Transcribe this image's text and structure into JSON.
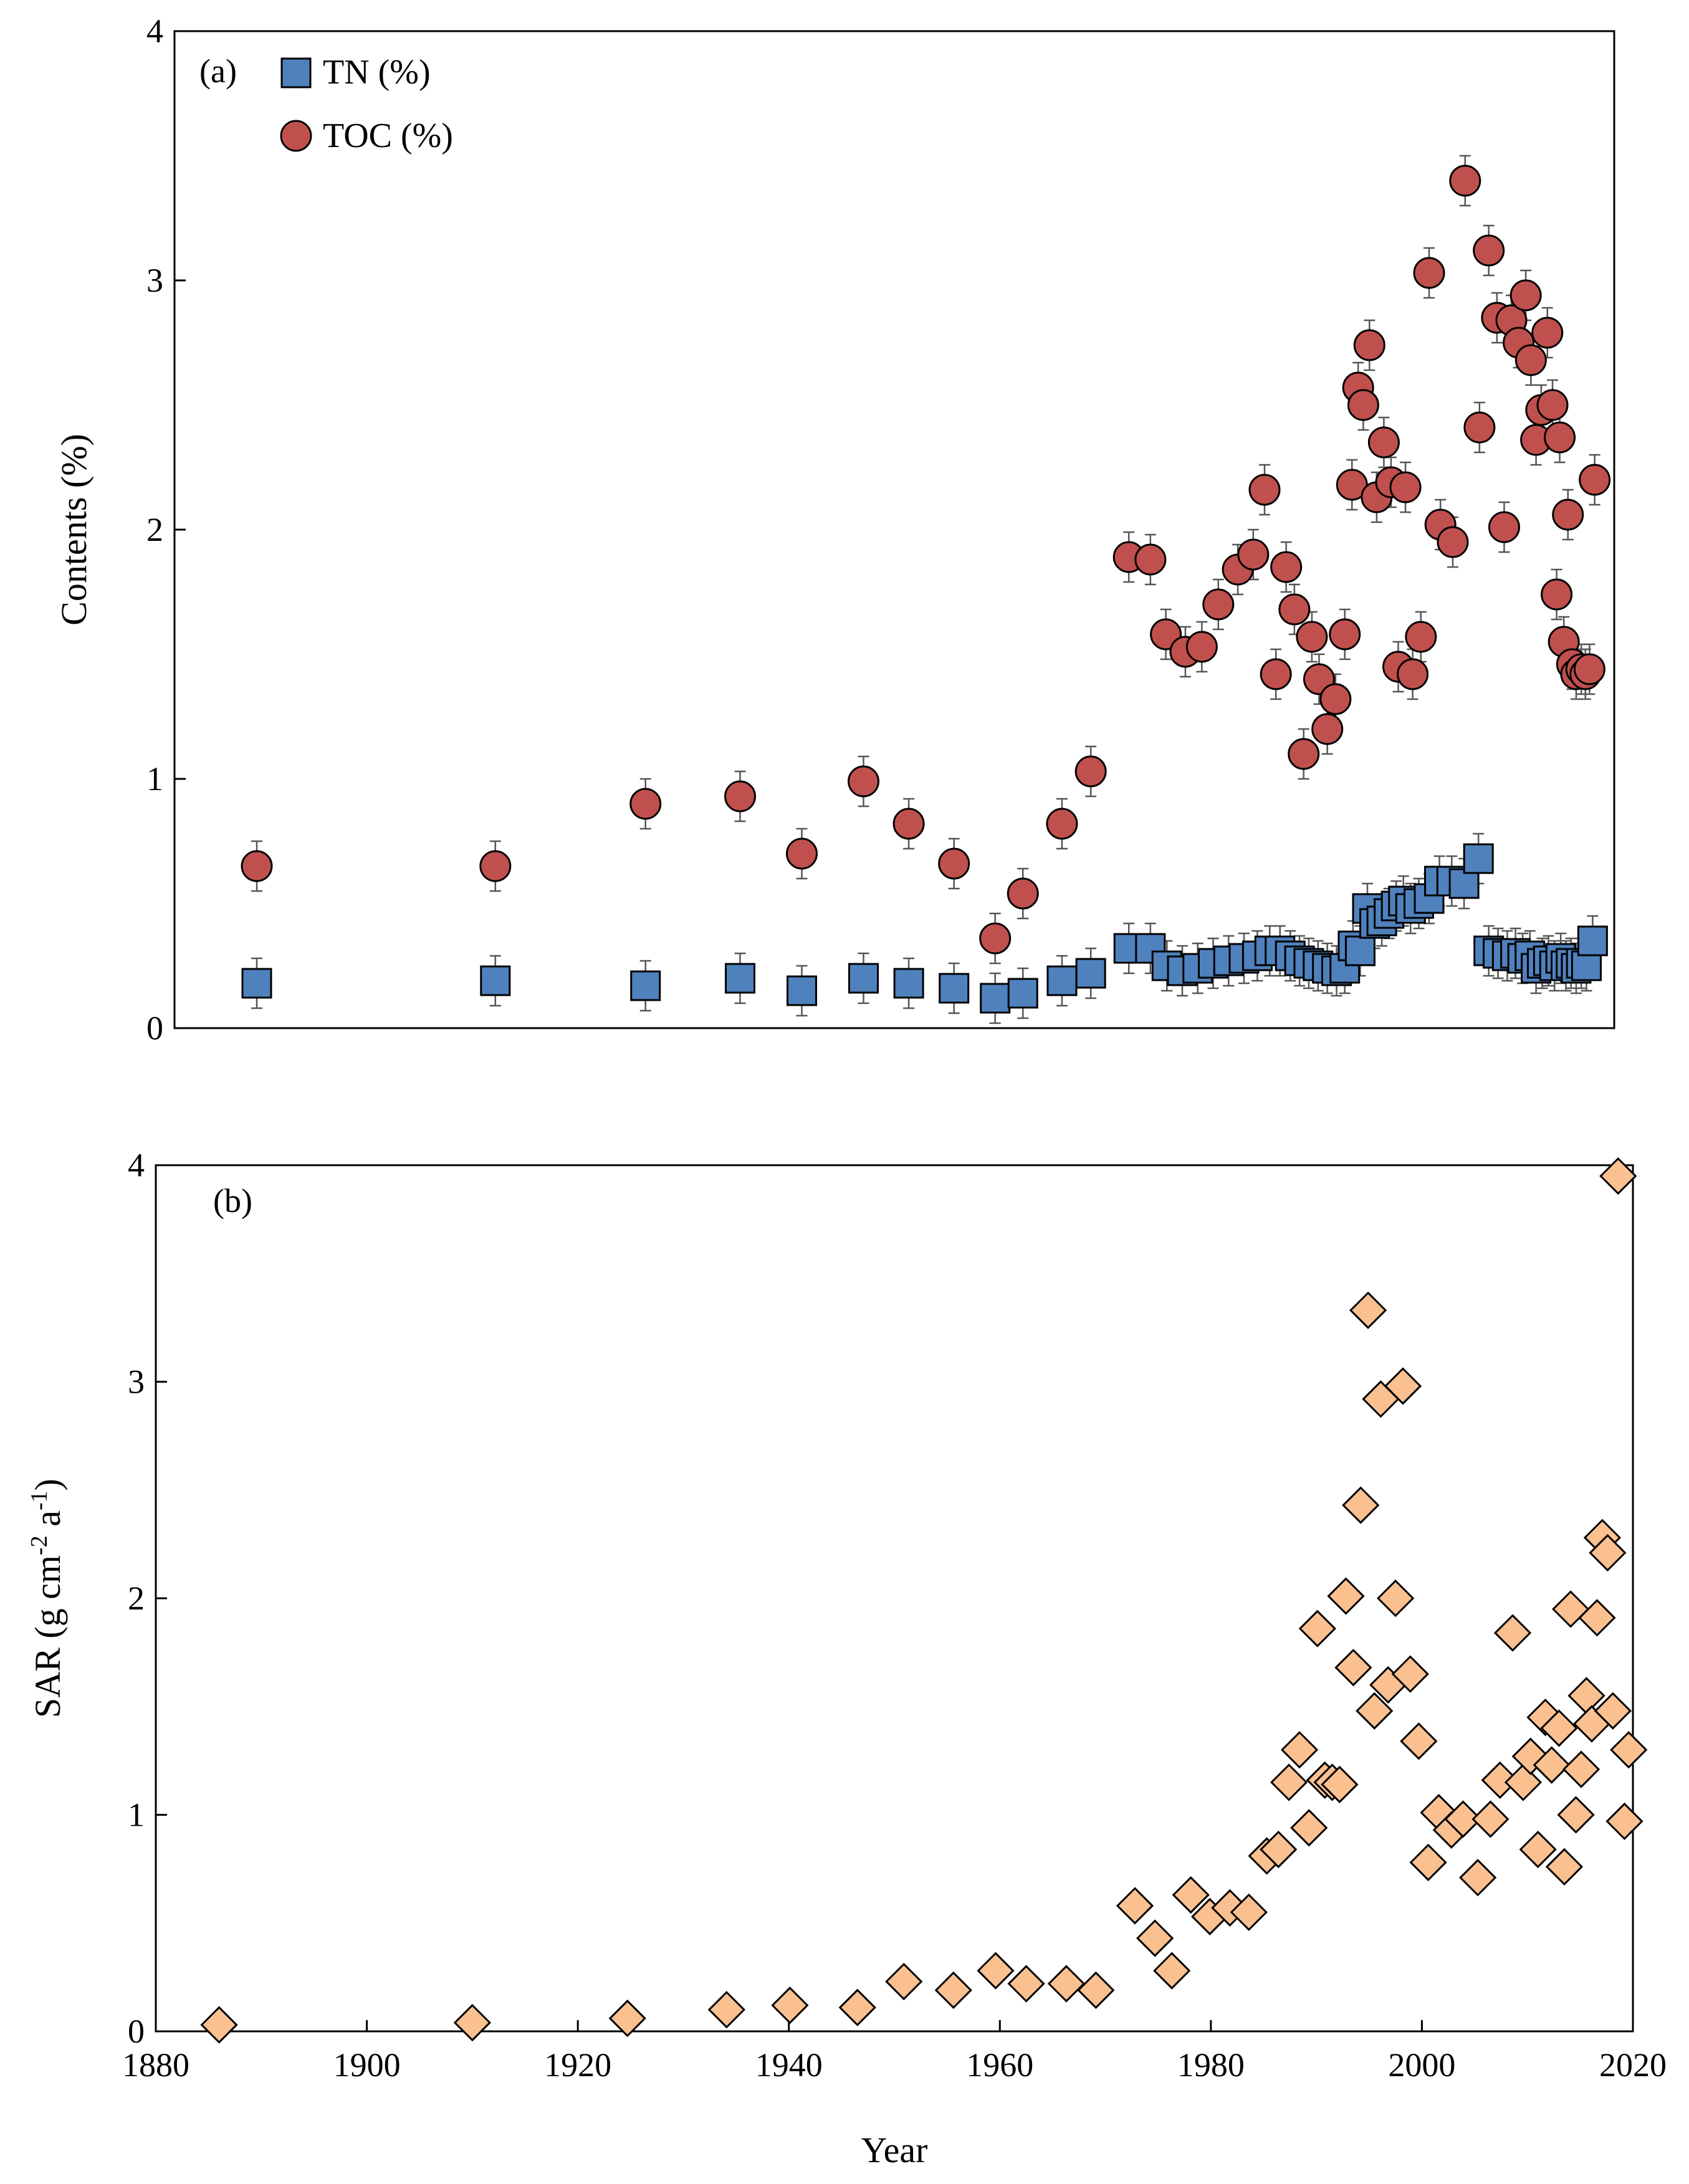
{
  "chart_data": [
    {
      "type": "scatter",
      "panel_label": "(a)",
      "ylabel": "Contents (%)",
      "xlabel": "",
      "xlim": [
        1880,
        2020
      ],
      "ylim": [
        0,
        4
      ],
      "yticks": [
        0,
        1,
        2,
        3,
        4
      ],
      "grid": false,
      "legend_position": "top-left",
      "error_bar": 0.1,
      "series": [
        {
          "name": "TN (%)",
          "marker": "square",
          "color": "#4f81bd",
          "x": [
            1888,
            1911.2,
            1925.8,
            1935,
            1941,
            1947,
            1951.4,
            1955.8,
            1959.8,
            1962.5,
            1966.3,
            1969.1,
            1972.8,
            1974.9,
            1976.5,
            1978,
            1979.5,
            1981,
            1982.5,
            1984,
            1985.3,
            1986.5,
            1987.5,
            1988.5,
            1989.4,
            1990.3,
            1991.2,
            1992.1,
            1993,
            1993.8,
            1994.6,
            1995.3,
            1996,
            1996.7,
            1997.4,
            1998.1,
            1998.8,
            1999.5,
            2000.2,
            2001,
            2002,
            2003,
            2004.2,
            2005.4,
            2006.8,
            2007.8,
            2008.7,
            2009.6,
            2010.4,
            2011.1,
            2011.8,
            2012.4,
            2013,
            2013.6,
            2014.2,
            2014.8,
            2015.3,
            2015.8,
            2016.3,
            2016.8,
            2017.3,
            2017.9
          ],
          "y": [
            0.18,
            0.19,
            0.17,
            0.2,
            0.15,
            0.2,
            0.18,
            0.16,
            0.12,
            0.14,
            0.19,
            0.22,
            0.32,
            0.32,
            0.25,
            0.23,
            0.24,
            0.26,
            0.27,
            0.28,
            0.29,
            0.31,
            0.31,
            0.29,
            0.27,
            0.26,
            0.25,
            0.24,
            0.23,
            0.24,
            0.33,
            0.31,
            0.48,
            0.42,
            0.43,
            0.46,
            0.49,
            0.51,
            0.48,
            0.5,
            0.52,
            0.59,
            0.59,
            0.58,
            0.68,
            0.31,
            0.3,
            0.29,
            0.3,
            0.28,
            0.29,
            0.24,
            0.26,
            0.27,
            0.25,
            0.28,
            0.25,
            0.26,
            0.24,
            0.26,
            0.25,
            0.35
          ]
        },
        {
          "name": "TOC (%)",
          "marker": "circle",
          "color": "#c0504d",
          "x": [
            1888,
            1911.2,
            1925.8,
            1935,
            1941,
            1947,
            1951.4,
            1955.8,
            1959.8,
            1962.5,
            1966.3,
            1969.1,
            1972.8,
            1974.9,
            1976.4,
            1978.3,
            1979.9,
            1981.5,
            1983.4,
            1984.9,
            1986,
            1987.1,
            1988.1,
            1988.9,
            1989.8,
            1990.6,
            1991.3,
            1992.1,
            1992.9,
            1993.8,
            1994.5,
            1995.1,
            1995.6,
            1996.2,
            1996.9,
            1997.6,
            1998.3,
            1999,
            1999.7,
            2000.4,
            2001.2,
            2002,
            2003.1,
            2004.3,
            2005.5,
            2006.9,
            2007.8,
            2008.6,
            2009.3,
            2010,
            2010.7,
            2011.4,
            2011.9,
            2012.4,
            2012.9,
            2013.5,
            2014,
            2014.4,
            2014.7,
            2015.1,
            2015.5,
            2015.9,
            2016.3,
            2016.8,
            2017.2,
            2017.6,
            2018.1
          ],
          "y": [
            0.65,
            0.65,
            0.9,
            0.93,
            0.7,
            0.99,
            0.82,
            0.66,
            0.36,
            0.54,
            0.82,
            1.03,
            1.89,
            1.88,
            1.58,
            1.51,
            1.53,
            1.7,
            1.84,
            1.9,
            2.16,
            1.42,
            1.85,
            1.68,
            1.1,
            1.57,
            1.4,
            1.2,
            1.32,
            1.58,
            2.18,
            2.57,
            2.5,
            2.74,
            2.13,
            2.35,
            2.19,
            1.45,
            2.17,
            1.42,
            1.57,
            3.03,
            2.02,
            1.95,
            3.4,
            2.41,
            3.12,
            2.85,
            2.01,
            2.84,
            2.75,
            2.94,
            2.68,
            2.36,
            2.48,
            2.79,
            2.5,
            1.74,
            2.37,
            1.55,
            2.06,
            1.46,
            1.42,
            1.44,
            1.42,
            1.44,
            2.2
          ]
        }
      ]
    },
    {
      "type": "scatter",
      "panel_label": "(b)",
      "ylabel": "SAR (g cm",
      "ylabel_sup1": "-2",
      "ylabel_mid": " a",
      "ylabel_sup2": "-1",
      "ylabel_end": ")",
      "xlabel": "Year",
      "xlim": [
        1880,
        2020
      ],
      "ylim": [
        0,
        4
      ],
      "xticks": [
        1880,
        1900,
        1920,
        1940,
        1960,
        1980,
        2000,
        2020
      ],
      "yticks": [
        0,
        1,
        2,
        3,
        4
      ],
      "grid": false,
      "series": [
        {
          "name": "",
          "marker": "diamond",
          "color": "#fac090",
          "x": [
            1886,
            1910,
            1924.7,
            1934.1,
            1940.1,
            1946.5,
            1950.9,
            1955.6,
            1959.6,
            1962.5,
            1966.3,
            1969.1,
            1972.8,
            1974.7,
            1976.3,
            1978.1,
            1979.9,
            1981.8,
            1983.6,
            1985.3,
            1986.4,
            1987.4,
            1988.4,
            1989.3,
            1990.1,
            1990.8,
            1991.5,
            1992.2,
            1992.8,
            1993.5,
            1994.2,
            1994.9,
            1995.5,
            1996.1,
            1996.8,
            1997.5,
            1998.2,
            1998.9,
            1999.7,
            2000.6,
            2001.6,
            2002.8,
            2003.9,
            2005.3,
            2006.5,
            2007.4,
            2008.6,
            2009.6,
            2010.3,
            2011,
            2011.7,
            2012.3,
            2013,
            2013.5,
            2014.1,
            2014.6,
            2015.1,
            2015.6,
            2016.1,
            2016.6,
            2017.1,
            2017.6,
            2018.1,
            2018.6,
            2019.2,
            2019.6
          ],
          "y": [
            0.03,
            0.04,
            0.06,
            0.1,
            0.12,
            0.11,
            0.23,
            0.19,
            0.28,
            0.22,
            0.22,
            0.19,
            0.58,
            0.43,
            0.28,
            0.63,
            0.53,
            0.57,
            0.55,
            0.81,
            0.84,
            1.15,
            1.3,
            0.94,
            1.86,
            1.16,
            1.15,
            1.14,
            2.01,
            1.68,
            2.43,
            3.33,
            1.48,
            2.92,
            1.6,
            2.0,
            2.98,
            1.65,
            1.34,
            0.78,
            1.01,
            0.93,
            0.98,
            0.71,
            0.98,
            1.16,
            1.84,
            1.15,
            1.27,
            0.84,
            1.45,
            1.23,
            1.4,
            0.76,
            1.95,
            1.0,
            1.21,
            1.55,
            1.42,
            1.91,
            2.28,
            2.21,
            1.48,
            3.95,
            0.97,
            1.3
          ]
        }
      ]
    }
  ]
}
